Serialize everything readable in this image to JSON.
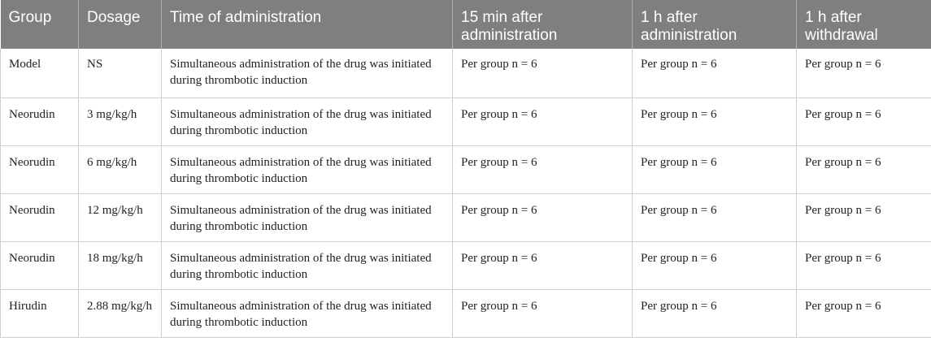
{
  "table": {
    "headers": [
      "Group",
      "Dosage",
      "Time of administration",
      "15 min after administration",
      "1 h after administration",
      "1 h after withdrawal"
    ],
    "rows": [
      [
        "Model",
        "NS",
        "Simultaneous administration of the drug was initiated during thrombotic induction",
        "Per group n = 6",
        "Per group n = 6",
        "Per group n = 6"
      ],
      [
        "Neorudin",
        "3 mg/kg/h",
        "Simultaneous administration of the drug was initiated during thrombotic induction",
        "Per group n = 6",
        "Per group n = 6",
        "Per group n = 6"
      ],
      [
        "Neorudin",
        "6 mg/kg/h",
        "Simultaneous administration of the drug was initiated during thrombotic induction",
        "Per group n = 6",
        "Per group n = 6",
        "Per group n = 6"
      ],
      [
        "Neorudin",
        "12 mg/kg/h",
        "Simultaneous administration of the drug was initiated during thrombotic induction",
        "Per group n = 6",
        "Per group n = 6",
        "Per group n = 6"
      ],
      [
        "Neorudin",
        "18 mg/kg/h",
        "Simultaneous administration of the drug was initiated during thrombotic induction",
        "Per group n = 6",
        "Per group n = 6",
        "Per group n = 6"
      ],
      [
        "Hirudin",
        "2.88 mg/kg/h",
        "Simultaneous administration of the drug was initiated during thrombotic induction",
        "Per group n = 6",
        "Per group n = 6",
        "Per group n = 6"
      ]
    ]
  },
  "colors": {
    "header_bg": "#7f7f7f",
    "header_text": "#ffffff",
    "grid_line": "#cfcfcf"
  }
}
